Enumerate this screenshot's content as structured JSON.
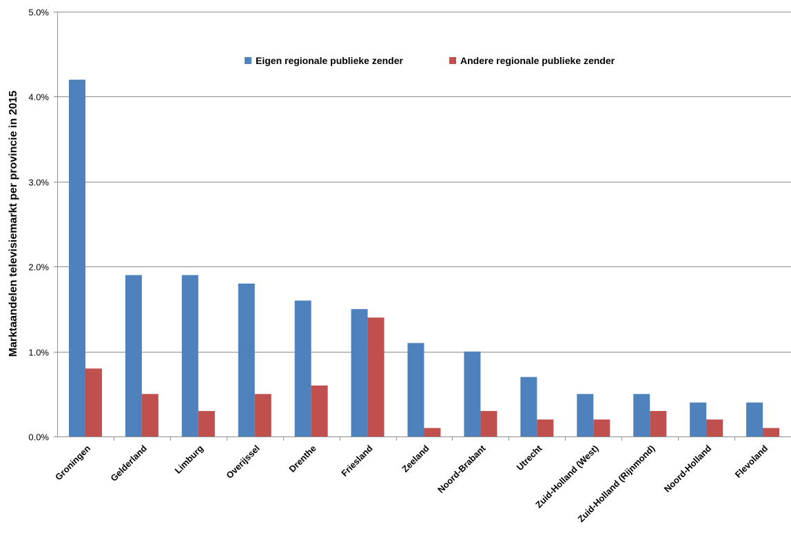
{
  "chart_data": {
    "type": "bar",
    "title": "",
    "xlabel": "",
    "ylabel": "Marktaandelen televisiemarkt per provincie in 2015",
    "ylim": [
      0,
      5
    ],
    "y_unit": "%",
    "y_ticks": [
      "0.0%",
      "1.0%",
      "2.0%",
      "3.0%",
      "4.0%",
      "5.0%"
    ],
    "grid": true,
    "legend_position": "top-center",
    "categories": [
      "Groningen",
      "Gelderland",
      "Limburg",
      "Overijssel",
      "Drenthe",
      "Friesland",
      "Zeeland",
      "Noord-Brabant",
      "Utrecht",
      "Zuid-Holland (West)",
      "Zuid-Holland (Rijnmond)",
      "Noord-Holland",
      "Flevoland"
    ],
    "series": [
      {
        "name": "Eigen regionale publieke zender",
        "color": "#4F81BD",
        "values": [
          4.2,
          1.9,
          1.9,
          1.8,
          1.6,
          1.5,
          1.1,
          1.0,
          0.7,
          0.5,
          0.5,
          0.4,
          0.4
        ]
      },
      {
        "name": "Andere regionale publieke zender",
        "color": "#C0504D",
        "values": [
          0.8,
          0.5,
          0.3,
          0.5,
          0.6,
          1.4,
          0.1,
          0.3,
          0.2,
          0.2,
          0.3,
          0.2,
          0.1
        ]
      }
    ]
  }
}
